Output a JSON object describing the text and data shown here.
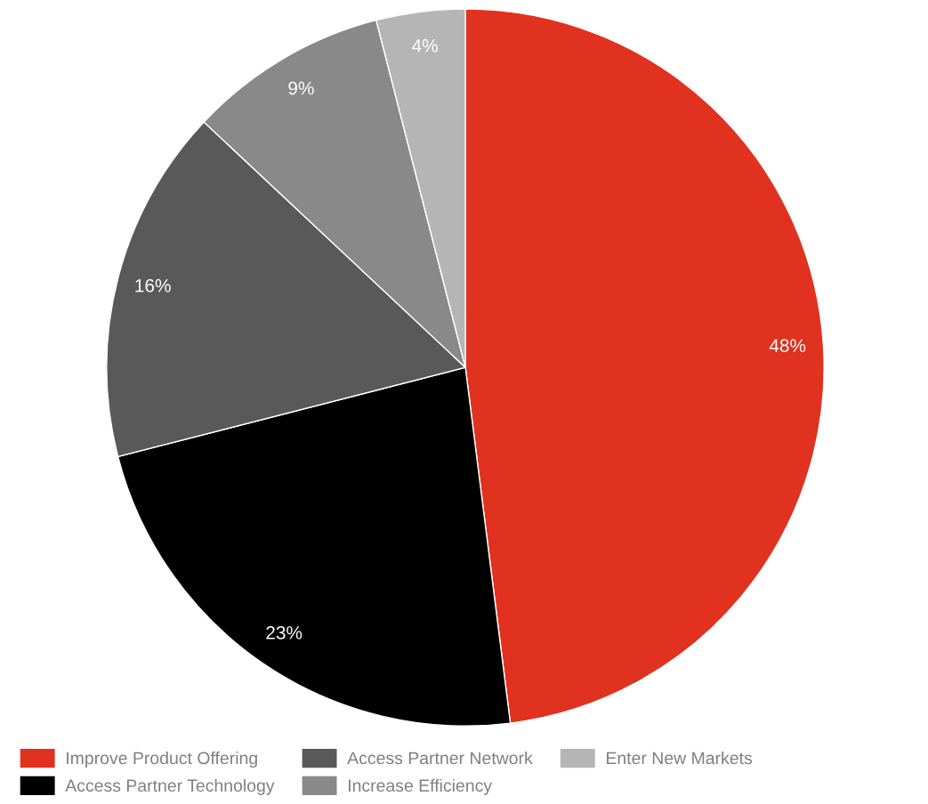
{
  "chart_data": {
    "type": "pie",
    "categories": [
      "Improve Product Offering",
      "Access Partner Technology",
      "Access Partner Network",
      "Increase Efficiency",
      "Enter New Markets"
    ],
    "values": [
      48,
      23,
      16,
      9,
      4
    ],
    "colors": [
      "#e0321f",
      "#000000",
      "#595959",
      "#898989",
      "#b5b5b5"
    ],
    "value_labels": [
      "48%",
      "23%",
      "16%",
      "9%",
      "4%"
    ],
    "legend": "bottom"
  }
}
